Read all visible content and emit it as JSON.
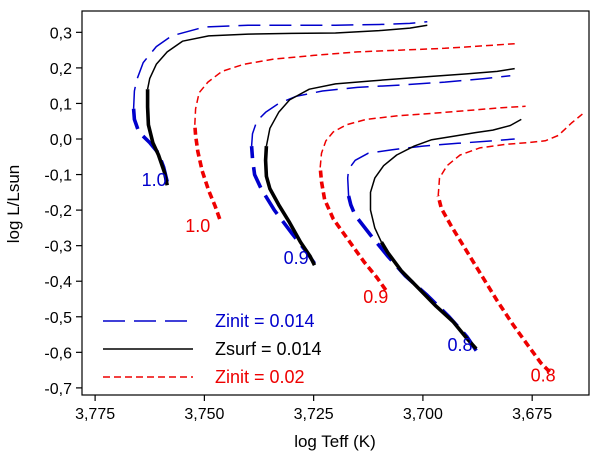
{
  "chart_data": {
    "type": "line",
    "title": "",
    "xlabel": "log Teff (K)",
    "ylabel": "log L/Lsun",
    "xlim": [
      3.778,
      3.662
    ],
    "ylim": [
      -0.72,
      0.36
    ],
    "x_reversed": true,
    "grid": false,
    "legend_position": "bottom-left",
    "x_ticks": [
      3.775,
      3.75,
      3.725,
      3.7,
      3.675
    ],
    "x_tick_labels": [
      "3,775",
      "3,750",
      "3,725",
      "3,700",
      "3,675"
    ],
    "y_ticks": [
      0.3,
      0.2,
      0.1,
      0.0,
      -0.1,
      -0.2,
      -0.3,
      -0.4,
      -0.5,
      -0.6,
      -0.7
    ],
    "y_tick_labels": [
      "0,3",
      "0,2",
      "0,1",
      "0,0",
      "-0,1",
      "-0,2",
      "-0,3",
      "-0,4",
      "-0,5",
      "-0,6",
      "-0,7"
    ],
    "series": [
      {
        "name": "Zinit = 0.014",
        "color": "#0000cc",
        "style": "long-dash",
        "tracks": [
          {
            "mass": "1.0",
            "label_at": [
              3.7615,
              -0.115
            ],
            "thick_points": [
              [
                3.7585,
                -0.12
              ],
              [
                3.7593,
                -0.08
              ],
              [
                3.7605,
                -0.04
              ],
              [
                3.7625,
                -0.01
              ],
              [
                3.765,
                0.02
              ],
              [
                3.766,
                0.055
              ],
              [
                3.7662,
                0.085
              ]
            ],
            "thin_points": [
              [
                3.7662,
                0.085
              ],
              [
                3.766,
                0.135
              ],
              [
                3.7655,
                0.165
              ],
              [
                3.764,
                0.215
              ],
              [
                3.761,
                0.26
              ],
              [
                3.7575,
                0.29
              ],
              [
                3.75,
                0.315
              ],
              [
                3.74,
                0.32
              ],
              [
                3.73,
                0.32
              ],
              [
                3.72,
                0.32
              ],
              [
                3.71,
                0.322
              ],
              [
                3.703,
                0.325
              ],
              [
                3.699,
                0.33
              ]
            ]
          },
          {
            "mass": "0.9",
            "label_at": [
              3.729,
              -0.335
            ],
            "thick_points": [
              [
                3.7248,
                -0.35
              ],
              [
                3.7268,
                -0.315
              ],
              [
                3.73,
                -0.265
              ],
              [
                3.734,
                -0.2
              ],
              [
                3.737,
                -0.14
              ],
              [
                3.7385,
                -0.1
              ],
              [
                3.739,
                -0.055
              ],
              [
                3.7392,
                -0.02
              ]
            ],
            "thin_points": [
              [
                3.7392,
                -0.02
              ],
              [
                3.739,
                0.015
              ],
              [
                3.738,
                0.05
              ],
              [
                3.736,
                0.075
              ],
              [
                3.733,
                0.1
              ],
              [
                3.729,
                0.12
              ],
              [
                3.723,
                0.135
              ],
              [
                3.715,
                0.145
              ],
              [
                3.705,
                0.152
              ],
              [
                3.695,
                0.16
              ],
              [
                3.686,
                0.17
              ],
              [
                3.68,
                0.178
              ]
            ]
          },
          {
            "mass": "0.8",
            "label_at": [
              3.6915,
              -0.58
            ],
            "thick_points": [
              [
                3.6878,
                -0.595
              ],
              [
                3.69,
                -0.555
              ],
              [
                3.694,
                -0.5
              ],
              [
                3.699,
                -0.44
              ],
              [
                3.704,
                -0.385
              ],
              [
                3.708,
                -0.33
              ],
              [
                3.712,
                -0.27
              ],
              [
                3.7155,
                -0.215
              ],
              [
                3.7165,
                -0.185
              ],
              [
                3.717,
                -0.16
              ]
            ],
            "thin_points": [
              [
                3.717,
                -0.16
              ],
              [
                3.7172,
                -0.11
              ],
              [
                3.717,
                -0.085
              ],
              [
                3.7155,
                -0.06
              ],
              [
                3.7125,
                -0.04
              ],
              [
                3.707,
                -0.03
              ],
              [
                3.7,
                -0.02
              ],
              [
                3.692,
                -0.012
              ],
              [
                3.684,
                -0.005
              ],
              [
                3.679,
                0.0
              ]
            ]
          }
        ]
      },
      {
        "name": "Zsurf = 0.014",
        "color": "#000000",
        "style": "solid",
        "tracks": [
          {
            "mass": "1.0",
            "thick_points": [
              [
                3.7585,
                -0.13
              ],
              [
                3.7591,
                -0.095
              ],
              [
                3.7605,
                -0.045
              ],
              [
                3.7618,
                -0.01
              ],
              [
                3.7628,
                0.04
              ],
              [
                3.763,
                0.09
              ],
              [
                3.763,
                0.14
              ]
            ],
            "thin_points": [
              [
                3.763,
                0.14
              ],
              [
                3.7625,
                0.17
              ],
              [
                3.761,
                0.21
              ],
              [
                3.7585,
                0.245
              ],
              [
                3.755,
                0.275
              ],
              [
                3.749,
                0.29
              ],
              [
                3.74,
                0.295
              ],
              [
                3.73,
                0.297
              ],
              [
                3.72,
                0.298
              ],
              [
                3.71,
                0.305
              ],
              [
                3.703,
                0.312
              ],
              [
                3.699,
                0.32
              ]
            ]
          },
          {
            "mass": "0.9",
            "thick_points": [
              [
                3.7248,
                -0.355
              ],
              [
                3.7258,
                -0.33
              ],
              [
                3.728,
                -0.29
              ],
              [
                3.7305,
                -0.235
              ],
              [
                3.733,
                -0.185
              ],
              [
                3.735,
                -0.14
              ],
              [
                3.7358,
                -0.105
              ],
              [
                3.736,
                -0.06
              ],
              [
                3.7358,
                -0.02
              ]
            ],
            "thin_points": [
              [
                3.7358,
                -0.02
              ],
              [
                3.735,
                0.03
              ],
              [
                3.733,
                0.075
              ],
              [
                3.7305,
                0.11
              ],
              [
                3.726,
                0.14
              ],
              [
                3.72,
                0.155
              ],
              [
                3.712,
                0.163
              ],
              [
                3.705,
                0.17
              ],
              [
                3.698,
                0.176
              ],
              [
                3.69,
                0.183
              ],
              [
                3.683,
                0.19
              ],
              [
                3.679,
                0.198
              ]
            ]
          },
          {
            "mass": "0.8",
            "thick_points": [
              [
                3.6878,
                -0.59
              ],
              [
                3.69,
                -0.56
              ],
              [
                3.693,
                -0.515
              ],
              [
                3.697,
                -0.47
              ],
              [
                3.701,
                -0.42
              ],
              [
                3.705,
                -0.37
              ],
              [
                3.708,
                -0.32
              ],
              [
                3.7095,
                -0.29
              ]
            ],
            "thin_points": [
              [
                3.7095,
                -0.29
              ],
              [
                3.711,
                -0.25
              ],
              [
                3.712,
                -0.2
              ],
              [
                3.712,
                -0.15
              ],
              [
                3.711,
                -0.11
              ],
              [
                3.709,
                -0.075
              ],
              [
                3.706,
                -0.045
              ],
              [
                3.702,
                -0.02
              ],
              [
                3.698,
                -0.002
              ],
              [
                3.693,
                0.008
              ],
              [
                3.688,
                0.018
              ],
              [
                3.684,
                0.025
              ],
              [
                3.68,
                0.038
              ],
              [
                3.6775,
                0.055
              ]
            ]
          }
        ]
      },
      {
        "name": "Zinit = 0.02",
        "color": "#ee0000",
        "style": "short-dash",
        "tracks": [
          {
            "mass": "1.0",
            "label_at": [
              3.7515,
              -0.245
            ],
            "thick_points": [
              [
                3.7465,
                -0.225
              ],
              [
                3.7475,
                -0.19
              ],
              [
                3.749,
                -0.145
              ],
              [
                3.7505,
                -0.09
              ],
              [
                3.7515,
                -0.035
              ],
              [
                3.752,
                0.01
              ],
              [
                3.7522,
                0.04
              ]
            ],
            "thin_points": [
              [
                3.7522,
                0.04
              ],
              [
                3.752,
                0.085
              ],
              [
                3.7512,
                0.13
              ],
              [
                3.7492,
                0.16
              ],
              [
                3.746,
                0.19
              ],
              [
                3.741,
                0.21
              ],
              [
                3.734,
                0.225
              ],
              [
                3.725,
                0.235
              ],
              [
                3.715,
                0.245
              ],
              [
                3.705,
                0.25
              ],
              [
                3.695,
                0.255
              ],
              [
                3.686,
                0.262
              ],
              [
                3.679,
                0.268
              ]
            ]
          },
          {
            "mass": "0.9",
            "label_at": [
              3.7108,
              -0.445
            ],
            "thick_points": [
              [
                3.7085,
                -0.425
              ],
              [
                3.7105,
                -0.39
              ],
              [
                3.7135,
                -0.345
              ],
              [
                3.717,
                -0.285
              ],
              [
                3.7205,
                -0.225
              ],
              [
                3.7225,
                -0.17
              ],
              [
                3.7232,
                -0.12
              ],
              [
                3.7235,
                -0.08
              ]
            ],
            "thin_points": [
              [
                3.7235,
                -0.08
              ],
              [
                3.7232,
                -0.04
              ],
              [
                3.7222,
                -0.005
              ],
              [
                3.7205,
                0.02
              ],
              [
                3.7175,
                0.04
              ],
              [
                3.713,
                0.055
              ],
              [
                3.706,
                0.065
              ],
              [
                3.698,
                0.072
              ],
              [
                3.69,
                0.08
              ],
              [
                3.682,
                0.088
              ],
              [
                3.6765,
                0.092
              ]
            ]
          },
          {
            "mass": "0.8",
            "label_at": [
              3.6725,
              -0.665
            ],
            "thick_points": [
              [
                3.671,
                -0.655
              ],
              [
                3.673,
                -0.63
              ],
              [
                3.676,
                -0.58
              ],
              [
                3.6795,
                -0.52
              ],
              [
                3.683,
                -0.455
              ],
              [
                3.6865,
                -0.385
              ],
              [
                3.69,
                -0.315
              ],
              [
                3.6935,
                -0.245
              ],
              [
                3.6958,
                -0.195
              ],
              [
                3.6965,
                -0.16
              ]
            ],
            "thin_points": [
              [
                3.6965,
                -0.16
              ],
              [
                3.6962,
                -0.11
              ],
              [
                3.6945,
                -0.075
              ],
              [
                3.6915,
                -0.045
              ],
              [
                3.687,
                -0.025
              ],
              [
                3.681,
                -0.015
              ],
              [
                3.676,
                -0.01
              ],
              [
                3.672,
                -0.005
              ],
              [
                3.669,
                0.01
              ],
              [
                3.666,
                0.045
              ],
              [
                3.6635,
                0.07
              ]
            ]
          }
        ]
      }
    ],
    "legend": [
      {
        "label": "Zinit = 0.014",
        "color": "#0000cc",
        "style": "long-dash"
      },
      {
        "label": "Zsurf = 0.014",
        "color": "#000000",
        "style": "solid"
      },
      {
        "label": "Zinit = 0.02",
        "color": "#ee0000",
        "style": "short-dash"
      }
    ]
  }
}
